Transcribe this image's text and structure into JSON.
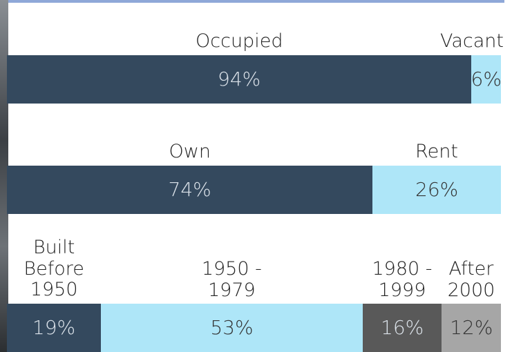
{
  "chart_data": [
    {
      "type": "stacked-bar",
      "series": [
        {
          "name": "Occupied",
          "color": "#34495e",
          "values": [
            94
          ],
          "value_labels": [
            "94%"
          ]
        },
        {
          "name": "Vacant",
          "color": "#aee6f8",
          "values": [
            6
          ],
          "value_labels": [
            "6%"
          ]
        }
      ]
    },
    {
      "type": "stacked-bar",
      "series": [
        {
          "name": "Own",
          "color": "#34495e",
          "values": [
            74
          ],
          "value_labels": [
            "74%"
          ]
        },
        {
          "name": "Rent",
          "color": "#aee6f8",
          "values": [
            26
          ],
          "value_labels": [
            "26%"
          ]
        }
      ]
    },
    {
      "type": "stacked-bar",
      "series": [
        {
          "name": "Built\nBefore\n1950",
          "color": "#34495e",
          "values": [
            19
          ],
          "value_labels": [
            "19%"
          ]
        },
        {
          "name": "1950 -\n1979",
          "color": "#aee6f8",
          "values": [
            53
          ],
          "value_labels": [
            "53%"
          ]
        },
        {
          "name": "1980 -\n1999",
          "color": "#595959",
          "values": [
            16
          ],
          "value_labels": [
            "16%"
          ]
        },
        {
          "name": "After\n2000",
          "color": "#a6a6a6",
          "values": [
            12
          ],
          "value_labels": [
            "12%"
          ]
        }
      ]
    }
  ]
}
